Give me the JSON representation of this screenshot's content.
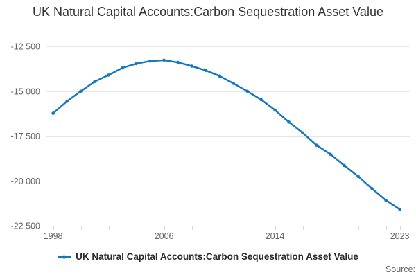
{
  "title": {
    "text": "UK Natural Capital Accounts:Carbon Sequestration Asset Value"
  },
  "legend": {
    "label": "UK Natural Capital Accounts:Carbon Sequestration Asset Value"
  },
  "source": {
    "label": "Source:"
  },
  "colors": {
    "series": "#1577bd",
    "grid": "#e6e6e6",
    "axis": "#ccd6eb",
    "tick_label": "#666666",
    "title": "#333333",
    "legend_text": "#2b2b2b",
    "source_text": "#666666",
    "background": "#ffffff"
  },
  "chart_data": {
    "type": "line",
    "title": "UK Natural Capital Accounts:Carbon Sequestration Asset Value",
    "xlabel": "",
    "ylabel": "",
    "x": [
      1998,
      1999,
      2000,
      2001,
      2002,
      2003,
      2004,
      2005,
      2006,
      2007,
      2008,
      2009,
      2010,
      2011,
      2012,
      2013,
      2014,
      2015,
      2016,
      2017,
      2018,
      2019,
      2020,
      2021,
      2022,
      2023
    ],
    "series": [
      {
        "name": "UK Natural Capital Accounts:Carbon Sequestration Asset Value",
        "values": [
          -16230,
          -15560,
          -15000,
          -14460,
          -14100,
          -13700,
          -13460,
          -13320,
          -13270,
          -13390,
          -13600,
          -13840,
          -14150,
          -14560,
          -15000,
          -15470,
          -16050,
          -16720,
          -17320,
          -18010,
          -18510,
          -19140,
          -19750,
          -20430,
          -21080,
          -21580
        ]
      }
    ],
    "xlim": [
      1998,
      2023
    ],
    "ylim": [
      -22500,
      -12500
    ],
    "yticks": [
      -12500,
      -15000,
      -17500,
      -20000,
      -22500
    ],
    "ytick_labels": [
      "-12 500",
      "-15 000",
      "-17 500",
      "-20 000",
      "-22 500"
    ],
    "xtick_labels": [
      1998,
      2006,
      2014,
      2023
    ],
    "xtick_minor_start": 1998,
    "xtick_minor_step": 2,
    "xtick_minor_end": 2022,
    "xtick_extra": 2023,
    "grid": "horizontal",
    "markers": true,
    "legend_position": "bottom"
  }
}
